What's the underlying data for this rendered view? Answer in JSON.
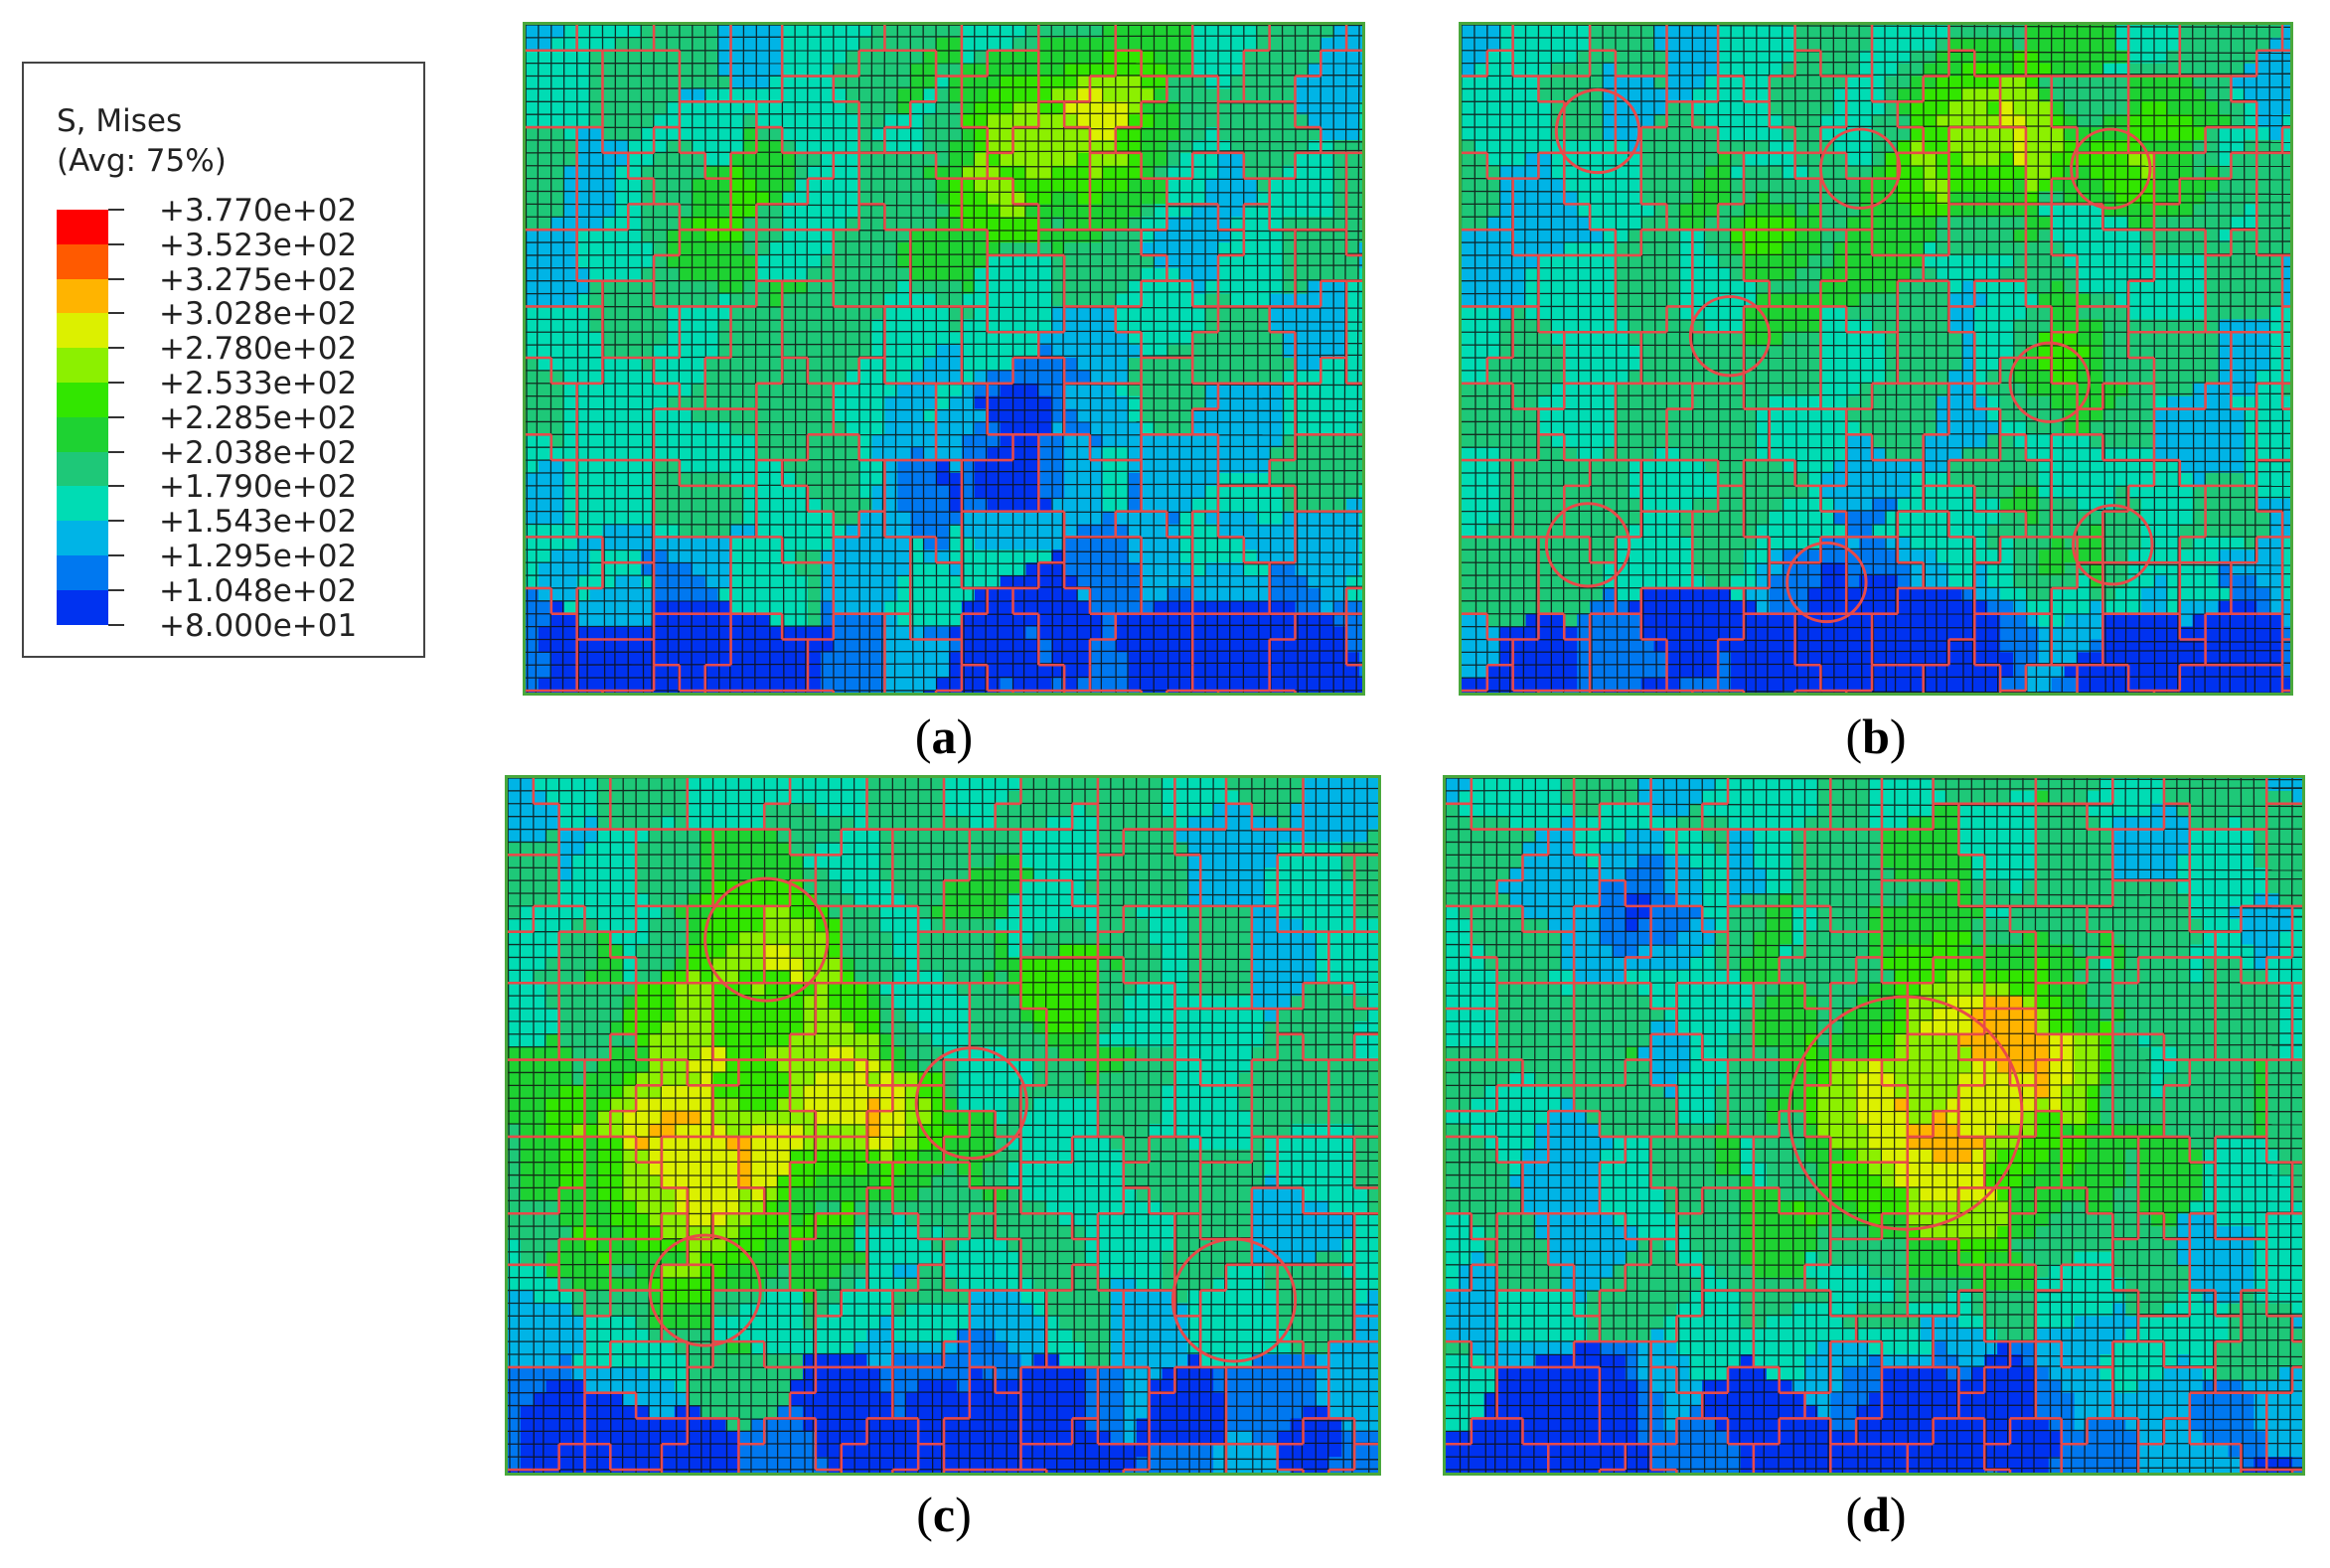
{
  "legend": {
    "title_line1": "S, Mises",
    "title_line2": "(Avg: 75%)",
    "labels": [
      "+3.770e+02",
      "+3.523e+02",
      "+3.275e+02",
      "+3.028e+02",
      "+2.780e+02",
      "+2.533e+02",
      "+2.285e+02",
      "+2.038e+02",
      "+1.790e+02",
      "+1.543e+02",
      "+1.295e+02",
      "+1.048e+02",
      "+8.000e+01"
    ],
    "colors": [
      "#ff0000",
      "#ff5a00",
      "#ffb400",
      "#dcf000",
      "#8cf000",
      "#32e600",
      "#1ed232",
      "#1ec878",
      "#00dcb4",
      "#00b4e6",
      "#0078f0",
      "#0032f0"
    ]
  },
  "panels": [
    {
      "id": "a",
      "open": "(",
      "letter": "a",
      "close": ")"
    },
    {
      "id": "b",
      "open": "(",
      "letter": "b",
      "close": ")"
    },
    {
      "id": "c",
      "open": "(",
      "letter": "c",
      "close": ")"
    },
    {
      "id": "d",
      "open": "(",
      "letter": "d",
      "close": ")"
    }
  ],
  "colors": {
    "grain_boundary": "#e84a4a",
    "mesh_line": "#111111",
    "border": "#4aa83c"
  }
}
